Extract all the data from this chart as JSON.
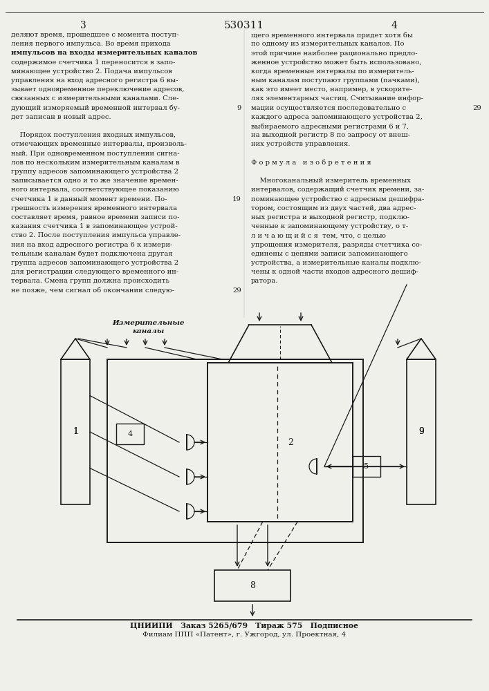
{
  "title_number": "530311",
  "page_left": "3",
  "page_right": "4",
  "bg_color": "#f0f0eb",
  "footer_line1": "ЦНИИПИ   Заказ 5265/679   Тираж 575   Подписное",
  "footer_line2": "Филиам ППП «Патент», г. Ужгород, ул. Проектная, 4"
}
